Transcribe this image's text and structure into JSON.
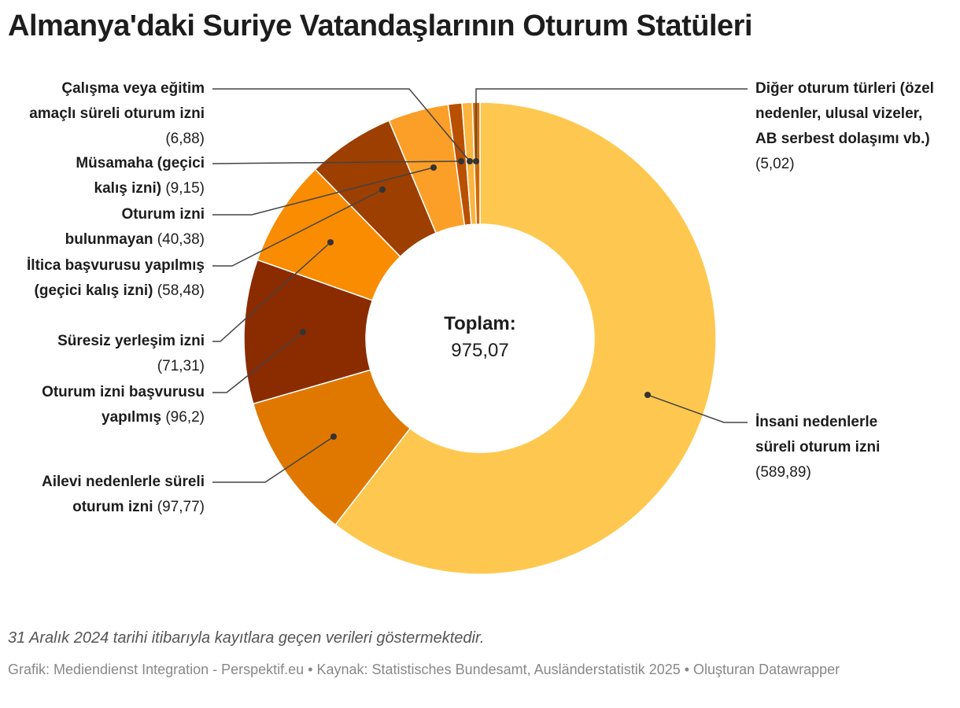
{
  "title": "Almanya'daki Suriye Vatandaşlarının Oturum Statüleri",
  "chart_data": {
    "type": "pie",
    "title": "Almanya'daki Suriye Vatandaşlarının Oturum Statüleri",
    "donut": true,
    "total_label": "Toplam:",
    "total_value": "975,07",
    "slices": [
      {
        "label": "İnsani nedenlerle süreli oturum izni",
        "value": 589.89,
        "value_text": "(589,89)",
        "color": "#fec850"
      },
      {
        "label": "Ailevi nedenlerle süreli oturum izni",
        "value": 97.77,
        "value_text": "(97,77)",
        "color": "#e07800"
      },
      {
        "label": "Oturum izni başvurusu yapılmış",
        "value": 96.2,
        "value_text": "(96,2)",
        "color": "#8b2b00"
      },
      {
        "label": "Süresiz yerleşim izni",
        "value": 71.31,
        "value_text": "(71,31)",
        "color": "#f98c00"
      },
      {
        "label": "İltica başvurusu yapılmış (geçici kalış izni)",
        "value": 58.48,
        "value_text": "(58,48)",
        "color": "#9c3f00"
      },
      {
        "label": "Oturum izni bulunmayan",
        "value": 40.38,
        "value_text": "(40,38)",
        "color": "#fb9f28"
      },
      {
        "label": "Müsamaha (geçici kalış izni)",
        "value": 9.15,
        "value_text": "(9,15)",
        "color": "#b85000"
      },
      {
        "label": "Çalışma veya eğitim amaçlı süreli oturum izni",
        "value": 6.88,
        "value_text": "(6,88)",
        "color": "#fbb540"
      },
      {
        "label": "Diğer oturum türleri (özel nedenler, ulusal vizeler, AB serbest dolaşımı vb.)",
        "value": 5.02,
        "value_text": "(5,02)",
        "color": "#d06a00"
      }
    ]
  },
  "notes": "31 Aralık 2024 tarihi itibarıyla kayıtlara geçen verileri göstermektedir.",
  "source": "Grafik: Mediendienst Integration - Perspektif.eu • Kaynak: Statistisches Bundesamt, Ausländerstatistik 2025 • Oluşturan Datawrapper"
}
